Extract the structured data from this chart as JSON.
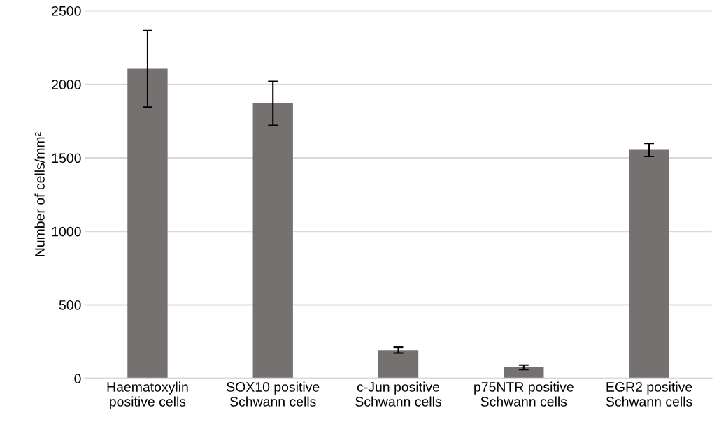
{
  "chart_data": {
    "type": "bar",
    "ylabel": "Number of cells/mm²",
    "categories": [
      "Haematoxylin\npositive cells",
      "SOX10 positive\nSchwann cells",
      "c-Jun positive\nSchwann cells",
      "p75NTR positive\nSchwann cells",
      "EGR2 positive\nSchwann cells"
    ],
    "values": [
      2105,
      1870,
      192,
      75,
      1554
    ],
    "errors": [
      260,
      150,
      20,
      15,
      45
    ],
    "color": "#757170",
    "ylim": [
      0,
      2500
    ],
    "yticks": [
      0,
      500,
      1000,
      1500,
      2000,
      2500
    ],
    "grid": "y"
  }
}
